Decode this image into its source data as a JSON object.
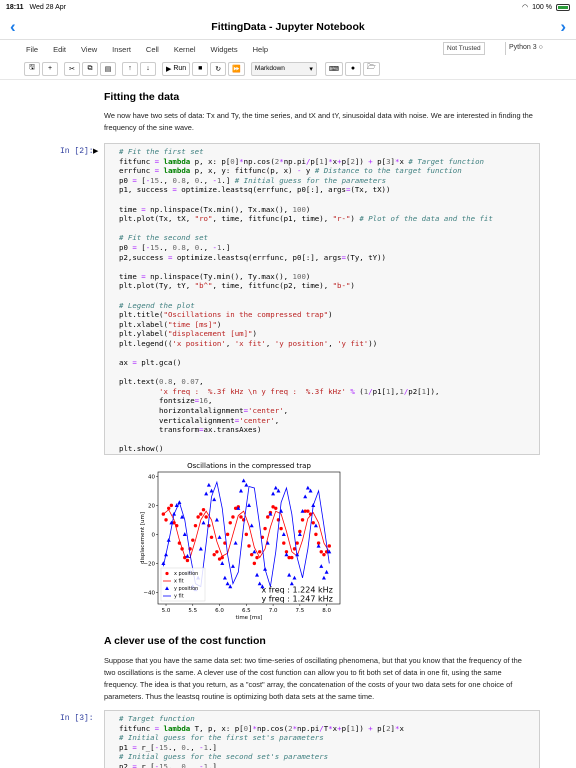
{
  "status": {
    "time": "18:11",
    "date": "Wed 28 Apr",
    "battery": "100 %"
  },
  "nav": {
    "title": "FittingData - Jupyter Notebook",
    "back": "‹",
    "forward": "›"
  },
  "menu": {
    "items": [
      "File",
      "Edit",
      "View",
      "Insert",
      "Cell",
      "Kernel",
      "Widgets",
      "Help"
    ],
    "trusted": "Not Trusted",
    "kernel": "Python 3"
  },
  "toolbar": {
    "run_label": "Run",
    "cell_type": "Markdown"
  },
  "section1": {
    "title": "Fitting the data",
    "text": "We now have two sets of data: Tx and Ty, the time series, and tX and tY, sinusoidal data with noise. We are interested in finding the frequency of the sine wave."
  },
  "cell1": {
    "prompt": "In [2]:",
    "lines": [
      "# Fit the first set",
      "fitfunc = lambda p, x: p[0]*np.cos(2*np.pi/p[1]*x+p[2]) + p[3]*x # Target function",
      "errfunc = lambda p, x, y: fitfunc(p, x) - y # Distance to the target function",
      "p0 = [-15., 0.8, 0., -1.] # Initial guess for the parameters",
      "p1, success = optimize.leastsq(errfunc, p0[:], args=(Tx, tX))",
      "",
      "time = np.linspace(Tx.min(), Tx.max(), 100)",
      "plt.plot(Tx, tX, \"ro\", time, fitfunc(p1, time), \"r-\") # Plot of the data and the fit",
      "",
      "# Fit the second set",
      "p0 = [-15., 0.8, 0., -1.]",
      "p2,success = optimize.leastsq(errfunc, p0[:], args=(Ty, tY))",
      "",
      "time = np.linspace(Ty.min(), Ty.max(), 100)",
      "plt.plot(Ty, tY, \"b^\", time, fitfunc(p2, time), \"b-\")",
      "",
      "# Legend the plot",
      "plt.title(\"Oscillations in the compressed trap\")",
      "plt.xlabel(\"time [ms]\")",
      "plt.ylabel(\"displacement [um]\")",
      "plt.legend(('x position', 'x fit', 'y position', 'y fit'))",
      "",
      "ax = plt.gca()",
      "",
      "plt.text(0.8, 0.07,",
      "         'x freq :  %.3f kHz \\n y freq :  %.3f kHz' % (1/p1[1],1/p2[1]),",
      "         fontsize=16,",
      "         horizontalalignment='center',",
      "         verticalalignment='center',",
      "         transform=ax.transAxes)",
      "",
      "plt.show()"
    ]
  },
  "chart_data": {
    "type": "line",
    "title": "Oscillations in the compressed trap",
    "xlabel": "time [ms]",
    "ylabel": "displacement [um]",
    "xlim": [
      4.85,
      8.25
    ],
    "ylim": [
      -48,
      43
    ],
    "xticks": [
      "5.0",
      "5.5",
      "6.0",
      "6.5",
      "7.0",
      "7.5",
      "8.0"
    ],
    "yticks": [
      "40",
      "20",
      "0",
      "−20",
      "−40"
    ],
    "legend": [
      "x position",
      "x fit",
      "y position",
      "y fit"
    ],
    "legend_position": "lower-left",
    "annotation": [
      "x freq :  1.224 kHz",
      " y freq :  1.247 kHz"
    ],
    "series": [
      {
        "name": "x position",
        "marker": "o",
        "color": "#ff0000",
        "x": [
          4.95,
          5.0,
          5.05,
          5.1,
          5.15,
          5.2,
          5.25,
          5.3,
          5.35,
          5.4,
          5.45,
          5.5,
          5.55,
          5.6,
          5.65,
          5.7,
          5.75,
          5.8,
          5.85,
          5.9,
          5.95,
          6.0,
          6.05,
          6.1,
          6.15,
          6.2,
          6.25,
          6.3,
          6.35,
          6.4,
          6.45,
          6.5,
          6.55,
          6.6,
          6.65,
          6.7,
          6.75,
          6.8,
          6.85,
          6.9,
          6.95,
          7.0,
          7.05,
          7.1,
          7.15,
          7.2,
          7.25,
          7.3,
          7.35,
          7.4,
          7.45,
          7.5,
          7.55,
          7.6,
          7.65,
          7.7,
          7.75,
          7.8,
          7.85,
          7.9,
          7.95,
          8.0,
          8.05
        ],
        "y": [
          14,
          10,
          18,
          20,
          8,
          6,
          -6,
          -10,
          -16,
          -18,
          -10,
          -4,
          6,
          12,
          14,
          17,
          12,
          6,
          -2,
          -14,
          -12,
          -17,
          -16,
          -6,
          0,
          8,
          12,
          18,
          19,
          12,
          10,
          0,
          -8,
          -14,
          -20,
          -16,
          -12,
          -2,
          4,
          12,
          15,
          19,
          18,
          10,
          4,
          -6,
          -12,
          -16,
          -16,
          -10,
          -6,
          2,
          10,
          16,
          16,
          14,
          8,
          0,
          -6,
          -12,
          -14,
          -12,
          -8
        ]
      },
      {
        "name": "x fit",
        "color": "#ff0000",
        "x": [
          4.95,
          5.05,
          5.15,
          5.25,
          5.35,
          5.45,
          5.55,
          5.65,
          5.75,
          5.85,
          5.95,
          6.05,
          6.15,
          6.25,
          6.35,
          6.45,
          6.55,
          6.65,
          6.75,
          6.85,
          6.95,
          7.05,
          7.15,
          7.25,
          7.35,
          7.45,
          7.55,
          7.65,
          7.75,
          7.85,
          7.95,
          8.05
        ],
        "y": [
          14,
          17,
          10,
          -4,
          -15,
          -16,
          -4,
          10,
          16,
          10,
          -5,
          -15,
          -13,
          0,
          13,
          16,
          6,
          -9,
          -16,
          -10,
          5,
          16,
          14,
          2,
          -12,
          -15,
          -4,
          11,
          15,
          8,
          -6,
          -12
        ]
      },
      {
        "name": "y position",
        "marker": "^",
        "color": "#0000ff",
        "x": [
          4.95,
          5.0,
          5.05,
          5.1,
          5.15,
          5.2,
          5.25,
          5.3,
          5.35,
          5.4,
          5.45,
          5.5,
          5.55,
          5.6,
          5.65,
          5.7,
          5.75,
          5.8,
          5.85,
          5.9,
          5.95,
          6.0,
          6.05,
          6.1,
          6.15,
          6.2,
          6.25,
          6.3,
          6.35,
          6.4,
          6.45,
          6.5,
          6.55,
          6.6,
          6.65,
          6.7,
          6.75,
          6.8,
          6.85,
          6.9,
          6.95,
          7.0,
          7.05,
          7.1,
          7.15,
          7.2,
          7.25,
          7.3,
          7.35,
          7.4,
          7.45,
          7.5,
          7.55,
          7.6,
          7.65,
          7.7,
          7.75,
          7.8,
          7.85,
          7.9,
          7.95,
          8.0,
          8.05
        ],
        "y": [
          -20,
          -14,
          -4,
          8,
          14,
          20,
          22,
          12,
          0,
          -15,
          -26,
          -36,
          -38,
          -30,
          -10,
          8,
          28,
          34,
          30,
          24,
          10,
          -2,
          -20,
          -30,
          -34,
          -36,
          -22,
          -6,
          18,
          30,
          37,
          34,
          20,
          6,
          -12,
          -28,
          -34,
          -36,
          -24,
          -6,
          14,
          28,
          32,
          30,
          16,
          0,
          -14,
          -28,
          -34,
          -30,
          -14,
          0,
          16,
          26,
          32,
          30,
          20,
          6,
          -8,
          -22,
          -30,
          -26,
          -12
        ]
      },
      {
        "name": "y fit",
        "color": "#0000ff",
        "x": [
          4.95,
          5.05,
          5.15,
          5.25,
          5.35,
          5.45,
          5.55,
          5.65,
          5.75,
          5.85,
          5.95,
          6.05,
          6.15,
          6.25,
          6.35,
          6.45,
          6.55,
          6.65,
          6.75,
          6.85,
          6.95,
          7.05,
          7.15,
          7.25,
          7.35,
          7.45,
          7.55,
          7.65,
          7.75,
          7.85,
          7.95,
          8.05
        ],
        "y": [
          -22,
          -5,
          14,
          22,
          10,
          -14,
          -34,
          -36,
          -6,
          26,
          36,
          18,
          -14,
          -34,
          -26,
          6,
          33,
          32,
          6,
          -24,
          -36,
          -12,
          22,
          32,
          14,
          -16,
          -30,
          -10,
          20,
          30,
          6,
          -20
        ]
      }
    ]
  },
  "section2": {
    "title": "A clever use of the cost function",
    "text": "Suppose that you have the same data set: two time-series of oscillating phenomena, but that you know that the frequency of the two oscillations is the same. A clever use of the cost function can allow you to fit both set of data in one fit, using the same frequency. The idea is that you return, as a \"cost\" array, the concatenation of the costs of your two data sets for one choice of parameters. Thus the leastsq routine is optimizing both data sets at the same time."
  },
  "cell2": {
    "prompt": "In [3]:",
    "lines": [
      "# Target function",
      "fitfunc = lambda T, p, x: p[0]*np.cos(2*np.pi/T*x+p[1]) + p[2]*x",
      "# Initial guess for the first set's parameters",
      "p1 = r_[-15., 0., -1.]",
      "# Initial guess for the second set's parameters",
      "p2 = r_[-15., 0., -1.]"
    ]
  }
}
